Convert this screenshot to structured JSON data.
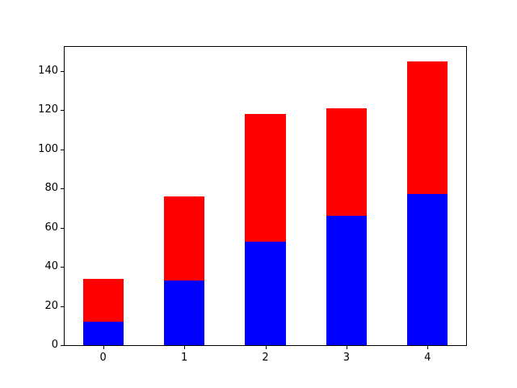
{
  "figure": {
    "background": "#ffffff"
  },
  "chart_data": {
    "type": "bar",
    "stacked": true,
    "title": "",
    "xlabel": "",
    "ylabel": "",
    "categories": [
      "0",
      "1",
      "2",
      "3",
      "4"
    ],
    "series": [
      {
        "name": "blue-series",
        "color": "#0000ff",
        "values": [
          12,
          33,
          53,
          66,
          77
        ]
      },
      {
        "name": "red-series",
        "color": "#ff0000",
        "values": [
          22,
          43,
          65,
          55,
          68
        ]
      }
    ],
    "stack_totals": [
      34,
      76,
      118,
      121,
      145
    ],
    "yticks": [
      0,
      20,
      40,
      60,
      80,
      100,
      120,
      140
    ],
    "xticks": [
      "0",
      "1",
      "2",
      "3",
      "4"
    ],
    "ylim": [
      0,
      152.25
    ],
    "xlim": [
      -0.475,
      4.475
    ],
    "bar_width": 0.5,
    "grid": false,
    "legend": false,
    "axis_color": "#000000",
    "text_color": "#000000"
  }
}
